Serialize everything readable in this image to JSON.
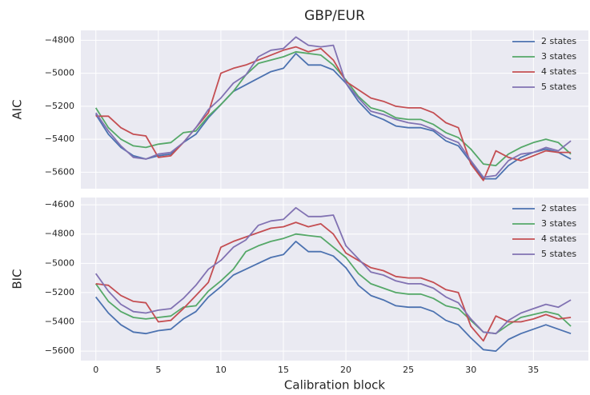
{
  "chart_data": [
    {
      "type": "line",
      "title": "GBP/EUR",
      "y_label": "AIC",
      "x": [
        0,
        1,
        2,
        3,
        4,
        5,
        6,
        7,
        8,
        9,
        10,
        11,
        12,
        13,
        14,
        15,
        16,
        17,
        18,
        19,
        20,
        21,
        22,
        23,
        24,
        25,
        26,
        27,
        28,
        29,
        30,
        31,
        32,
        33,
        34,
        35,
        36,
        37,
        38
      ],
      "xlim": [
        -1.2,
        39.4
      ],
      "xticks": [
        0,
        5,
        10,
        15,
        20,
        25,
        30,
        35
      ],
      "ylim": [
        -5700,
        -4740
      ],
      "yticks": [
        {
          "value": -5600,
          "label": "−5600"
        },
        {
          "value": -5400,
          "label": "−5400"
        },
        {
          "value": -5200,
          "label": "−5200"
        },
        {
          "value": -5000,
          "label": "−5000"
        },
        {
          "value": -4800,
          "label": "−4800"
        }
      ],
      "grid": true,
      "legend": "upper right",
      "series": [
        {
          "name": "2 states",
          "color": "#4c72b0",
          "values": [
            -5250,
            -5370,
            -5450,
            -5500,
            -5520,
            -5500,
            -5490,
            -5420,
            -5370,
            -5270,
            -5190,
            -5110,
            -5070,
            -5030,
            -4990,
            -4970,
            -4880,
            -4950,
            -4950,
            -4980,
            -5060,
            -5170,
            -5250,
            -5280,
            -5320,
            -5330,
            -5330,
            -5350,
            -5410,
            -5440,
            -5540,
            -5640,
            -5640,
            -5560,
            -5510,
            -5480,
            -5460,
            -5480,
            -5520
          ]
        },
        {
          "name": "3 states",
          "color": "#55a868",
          "values": [
            -5210,
            -5330,
            -5400,
            -5440,
            -5450,
            -5430,
            -5420,
            -5360,
            -5350,
            -5260,
            -5190,
            -5110,
            -5010,
            -4940,
            -4920,
            -4900,
            -4870,
            -4880,
            -4890,
            -4950,
            -5040,
            -5140,
            -5210,
            -5230,
            -5270,
            -5280,
            -5280,
            -5310,
            -5360,
            -5390,
            -5460,
            -5550,
            -5560,
            -5490,
            -5450,
            -5420,
            -5400,
            -5420,
            -5490
          ]
        },
        {
          "name": "4 states",
          "color": "#c44e52",
          "values": [
            -5260,
            -5260,
            -5330,
            -5370,
            -5380,
            -5510,
            -5500,
            -5420,
            -5330,
            -5240,
            -5000,
            -4970,
            -4950,
            -4920,
            -4890,
            -4860,
            -4840,
            -4870,
            -4850,
            -4920,
            -5050,
            -5100,
            -5150,
            -5170,
            -5200,
            -5210,
            -5210,
            -5240,
            -5300,
            -5330,
            -5550,
            -5650,
            -5470,
            -5510,
            -5530,
            -5500,
            -5470,
            -5480,
            -5480
          ]
        },
        {
          "name": "5 states",
          "color": "#8172b2",
          "values": [
            -5240,
            -5350,
            -5440,
            -5510,
            -5520,
            -5490,
            -5480,
            -5420,
            -5330,
            -5220,
            -5150,
            -5060,
            -5010,
            -4900,
            -4860,
            -4850,
            -4780,
            -4830,
            -4840,
            -4830,
            -5060,
            -5150,
            -5230,
            -5250,
            -5280,
            -5300,
            -5310,
            -5340,
            -5390,
            -5420,
            -5530,
            -5630,
            -5620,
            -5530,
            -5490,
            -5480,
            -5450,
            -5470,
            -5410
          ]
        }
      ]
    },
    {
      "type": "line",
      "y_label": "BIC",
      "x_label": "Calibration block",
      "x": [
        0,
        1,
        2,
        3,
        4,
        5,
        6,
        7,
        8,
        9,
        10,
        11,
        12,
        13,
        14,
        15,
        16,
        17,
        18,
        19,
        20,
        21,
        22,
        23,
        24,
        25,
        26,
        27,
        28,
        29,
        30,
        31,
        32,
        33,
        34,
        35,
        36,
        37,
        38
      ],
      "xlim": [
        -1.2,
        39.4
      ],
      "xticks": [
        0,
        5,
        10,
        15,
        20,
        25,
        30,
        35
      ],
      "ylim": [
        -5665,
        -4550
      ],
      "yticks": [
        {
          "value": -5600,
          "label": "−5600"
        },
        {
          "value": -5400,
          "label": "−5400"
        },
        {
          "value": -5200,
          "label": "−5200"
        },
        {
          "value": -5000,
          "label": "−5000"
        },
        {
          "value": -4800,
          "label": "−4800"
        },
        {
          "value": -4600,
          "label": "−4600"
        }
      ],
      "grid": true,
      "legend": "upper right",
      "series": [
        {
          "name": "2 states",
          "color": "#4c72b0",
          "values": [
            -5230,
            -5340,
            -5420,
            -5470,
            -5480,
            -5460,
            -5450,
            -5380,
            -5330,
            -5230,
            -5160,
            -5080,
            -5040,
            -5000,
            -4960,
            -4940,
            -4850,
            -4920,
            -4920,
            -4950,
            -5030,
            -5150,
            -5220,
            -5250,
            -5290,
            -5300,
            -5300,
            -5330,
            -5390,
            -5420,
            -5510,
            -5590,
            -5600,
            -5520,
            -5480,
            -5450,
            -5420,
            -5450,
            -5480
          ]
        },
        {
          "name": "3 states",
          "color": "#55a868",
          "values": [
            -5140,
            -5260,
            -5330,
            -5370,
            -5380,
            -5370,
            -5360,
            -5300,
            -5290,
            -5190,
            -5120,
            -5040,
            -4920,
            -4880,
            -4850,
            -4830,
            -4800,
            -4810,
            -4820,
            -4890,
            -4960,
            -5070,
            -5140,
            -5170,
            -5200,
            -5210,
            -5210,
            -5240,
            -5290,
            -5310,
            -5390,
            -5470,
            -5480,
            -5420,
            -5370,
            -5350,
            -5330,
            -5350,
            -5430
          ]
        },
        {
          "name": "4 states",
          "color": "#c44e52",
          "values": [
            -5140,
            -5150,
            -5220,
            -5260,
            -5270,
            -5400,
            -5390,
            -5310,
            -5220,
            -5130,
            -4890,
            -4850,
            -4820,
            -4790,
            -4760,
            -4750,
            -4720,
            -4750,
            -4730,
            -4800,
            -4930,
            -4980,
            -5030,
            -5050,
            -5090,
            -5100,
            -5100,
            -5130,
            -5180,
            -5200,
            -5430,
            -5530,
            -5360,
            -5400,
            -5400,
            -5380,
            -5350,
            -5380,
            -5370
          ]
        },
        {
          "name": "5 states",
          "color": "#8172b2",
          "values": [
            -5070,
            -5190,
            -5280,
            -5330,
            -5340,
            -5320,
            -5310,
            -5240,
            -5150,
            -5040,
            -4980,
            -4890,
            -4840,
            -4740,
            -4710,
            -4700,
            -4620,
            -4680,
            -4680,
            -4670,
            -4880,
            -4970,
            -5060,
            -5080,
            -5120,
            -5140,
            -5140,
            -5170,
            -5230,
            -5270,
            -5380,
            -5470,
            -5480,
            -5390,
            -5340,
            -5310,
            -5280,
            -5300,
            -5250
          ]
        }
      ]
    }
  ]
}
